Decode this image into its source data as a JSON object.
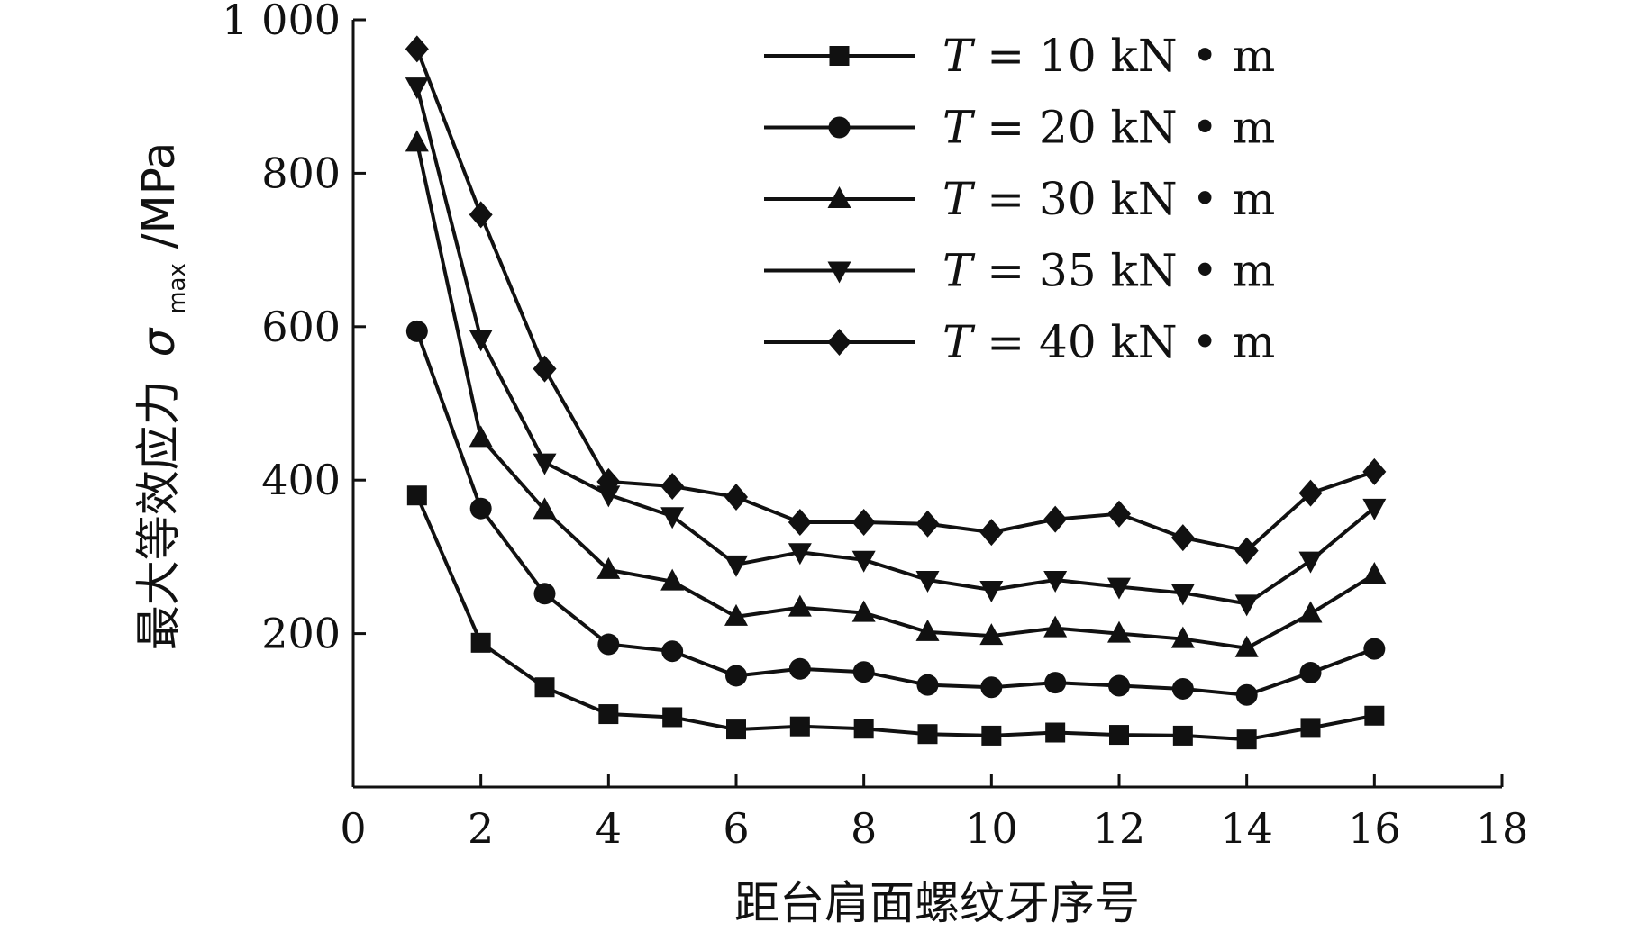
{
  "chart_data": {
    "type": "line",
    "xlabel": "距台肩面螺纹牙序号",
    "ylabel": {
      "text": "最大等效应力",
      "symbol": "σ",
      "subscript": "max",
      "unit": "/MPa"
    },
    "xlim": [
      0,
      18
    ],
    "ylim": [
      0,
      1000
    ],
    "xticks": [
      "0",
      "2",
      "4",
      "6",
      "8",
      "10",
      "12",
      "14",
      "16",
      "18"
    ],
    "yticks": [
      "200",
      "400",
      "600",
      "800",
      "1 000"
    ],
    "grid": false,
    "legend_position": "top-right",
    "x": [
      1,
      2,
      3,
      4,
      5,
      6,
      7,
      8,
      9,
      10,
      11,
      12,
      13,
      14,
      15,
      16
    ],
    "series": [
      {
        "name": "T = 10 kN • m",
        "legend_var": "T",
        "legend_rest": " = 10 kN • m",
        "marker": "square",
        "values": [
          380,
          188,
          130,
          95,
          91,
          75,
          79,
          76,
          69,
          67,
          71,
          68,
          67,
          62,
          77,
          93
        ]
      },
      {
        "name": "T = 20 kN • m",
        "legend_var": "T",
        "legend_rest": " = 20 kN • m",
        "marker": "circle",
        "values": [
          594,
          363,
          252,
          186,
          177,
          145,
          154,
          150,
          133,
          130,
          136,
          132,
          128,
          120,
          149,
          180
        ]
      },
      {
        "name": "T = 30 kN • m",
        "legend_var": "T",
        "legend_rest": " = 30 kN • m",
        "marker": "triangle-up",
        "values": [
          840,
          455,
          361,
          283,
          268,
          222,
          234,
          227,
          202,
          197,
          207,
          200,
          193,
          181,
          226,
          277
        ]
      },
      {
        "name": "T = 35 kN • m",
        "legend_var": "T",
        "legend_rest": " = 35 kN • m",
        "marker": "triangle-down",
        "values": [
          913,
          584,
          423,
          381,
          353,
          290,
          306,
          296,
          270,
          257,
          270,
          261,
          253,
          239,
          295,
          364
        ]
      },
      {
        "name": "T = 40 kN • m",
        "legend_var": "T",
        "legend_rest": " = 40 kN • m",
        "marker": "diamond",
        "values": [
          962,
          746,
          545,
          398,
          392,
          378,
          345,
          345,
          343,
          332,
          349,
          356,
          325,
          308,
          383,
          411
        ]
      }
    ]
  }
}
